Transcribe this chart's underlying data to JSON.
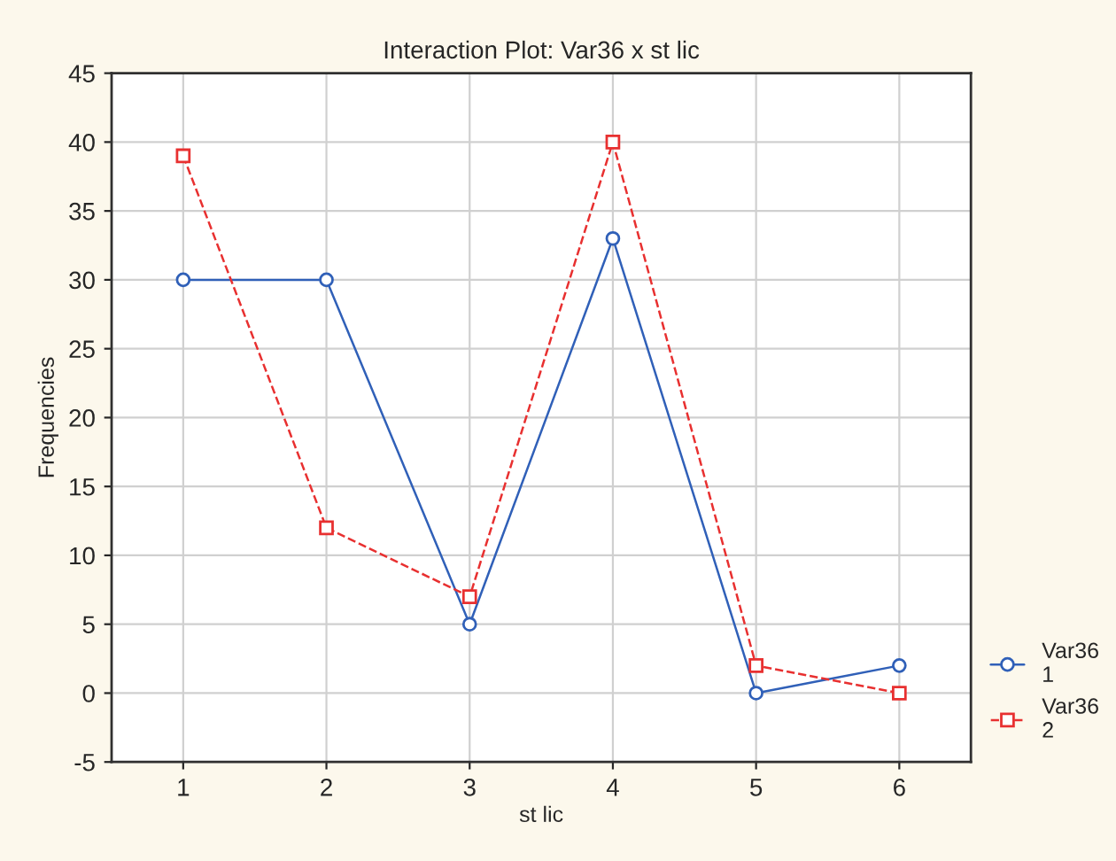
{
  "chart_data": {
    "type": "line",
    "title": "Interaction Plot: Var36 x st lic",
    "xlabel": "st lic",
    "ylabel": "Frequencies",
    "x": [
      1,
      2,
      3,
      4,
      5,
      6
    ],
    "xlim": [
      0.5,
      6.5
    ],
    "xticks": [
      1,
      2,
      3,
      4,
      5,
      6
    ],
    "ylim": [
      -5,
      45
    ],
    "yticks": [
      -5,
      0,
      5,
      10,
      15,
      20,
      25,
      30,
      35,
      40,
      45
    ],
    "grid": true,
    "legend": "bottom right",
    "series": [
      {
        "name": "Var36\n1",
        "color": "#3060b8",
        "values": [
          30,
          30,
          5,
          33,
          0,
          2
        ],
        "marker": "circle",
        "line_style": "solid"
      },
      {
        "name": "Var36\n2",
        "color": "#e83030",
        "values": [
          39,
          12,
          7,
          40,
          2,
          0
        ],
        "marker": "square",
        "line_style": "dashed"
      }
    ]
  }
}
